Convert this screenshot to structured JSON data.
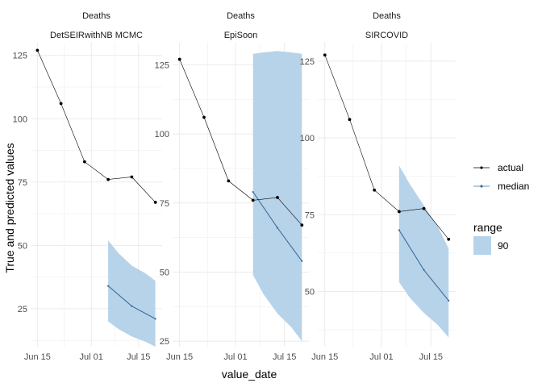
{
  "chart_data": {
    "type": "line",
    "xlabel": "value_date",
    "ylabel": "True and predicted values",
    "colors": {
      "actual": "#000000",
      "median": "#3d6e99",
      "ribbon": "#b7d3ea",
      "grid": "#ebebeb"
    },
    "legend": {
      "position": "right",
      "series_entries": [
        {
          "name": "actual",
          "color": "#000000"
        },
        {
          "name": "median",
          "color": "#3d6e99"
        }
      ],
      "range_title": "range",
      "range_entries": [
        {
          "label": "90",
          "color": "#b7d3ea"
        }
      ]
    },
    "panels": [
      {
        "strip_top": "Deaths",
        "strip_bottom": "DetSEIRwithNB MCMC",
        "ylim": [
          10,
          130
        ],
        "yticks": [
          25,
          50,
          75,
          100,
          125
        ],
        "ytick_labels": [
          "25",
          "50",
          "75",
          "100",
          "125"
        ],
        "xlim": [
          "2020-06-13",
          "2020-07-22"
        ],
        "xticks": [
          "2020-06-15",
          "2020-07-01",
          "2020-07-15"
        ],
        "xtick_labels": [
          "Jun 15",
          "Jul 01",
          "Jul 15"
        ],
        "actual": [
          {
            "x": "2020-06-15",
            "y": 127
          },
          {
            "x": "2020-06-22",
            "y": 106
          },
          {
            "x": "2020-06-29",
            "y": 83
          },
          {
            "x": "2020-07-06",
            "y": 76
          },
          {
            "x": "2020-07-13",
            "y": 77
          },
          {
            "x": "2020-07-20",
            "y": 67
          }
        ],
        "median": [
          {
            "x": "2020-07-06",
            "y": 34
          },
          {
            "x": "2020-07-13",
            "y": 26
          },
          {
            "x": "2020-07-20",
            "y": 21
          }
        ],
        "ribbon_90": [
          {
            "x": "2020-07-06",
            "lo": 20,
            "hi": 52
          },
          {
            "x": "2020-07-09",
            "lo": 17,
            "hi": 47
          },
          {
            "x": "2020-07-13",
            "lo": 14,
            "hi": 42
          },
          {
            "x": "2020-07-17",
            "lo": 12,
            "hi": 39
          },
          {
            "x": "2020-07-20",
            "lo": 10,
            "hi": 36
          }
        ]
      },
      {
        "strip_top": "Deaths",
        "strip_bottom": "EpiSoon",
        "ylim": [
          23,
          133
        ],
        "yticks": [
          25,
          50,
          75,
          100,
          125
        ],
        "ytick_labels": [
          "25",
          "50",
          "75",
          "100",
          "125"
        ],
        "xlim": [
          "2020-06-13",
          "2020-07-22"
        ],
        "xticks": [
          "2020-06-15",
          "2020-07-01",
          "2020-07-15"
        ],
        "xtick_labels": [
          "Jun 15",
          "Jul 01",
          "Jul 15"
        ],
        "actual": [
          {
            "x": "2020-06-15",
            "y": 127
          },
          {
            "x": "2020-06-22",
            "y": 106
          },
          {
            "x": "2020-06-29",
            "y": 83
          },
          {
            "x": "2020-07-06",
            "y": 76
          },
          {
            "x": "2020-07-13",
            "y": 77
          },
          {
            "x": "2020-07-20",
            "y": 67
          }
        ],
        "median": [
          {
            "x": "2020-07-06",
            "y": 79
          },
          {
            "x": "2020-07-13",
            "y": 66
          },
          {
            "x": "2020-07-20",
            "y": 54
          }
        ],
        "ribbon_90": [
          {
            "x": "2020-07-06",
            "lo": 49,
            "hi": 129
          },
          {
            "x": "2020-07-09",
            "lo": 42,
            "hi": 129.5
          },
          {
            "x": "2020-07-13",
            "lo": 35,
            "hi": 130
          },
          {
            "x": "2020-07-17",
            "lo": 30,
            "hi": 129.5
          },
          {
            "x": "2020-07-20",
            "lo": 25,
            "hi": 129
          }
        ]
      },
      {
        "strip_top": "Deaths",
        "strip_bottom": "SIRCOVID",
        "ylim": [
          32,
          131
        ],
        "yticks": [
          50,
          75,
          100,
          125
        ],
        "ytick_labels": [
          "50",
          "75",
          "100",
          "125"
        ],
        "xlim": [
          "2020-06-13",
          "2020-07-22"
        ],
        "xticks": [
          "2020-06-15",
          "2020-07-01",
          "2020-07-15"
        ],
        "xtick_labels": [
          "Jun 15",
          "Jul 01",
          "Jul 15"
        ],
        "actual": [
          {
            "x": "2020-06-15",
            "y": 127
          },
          {
            "x": "2020-06-22",
            "y": 106
          },
          {
            "x": "2020-06-29",
            "y": 83
          },
          {
            "x": "2020-07-06",
            "y": 76
          },
          {
            "x": "2020-07-13",
            "y": 77
          },
          {
            "x": "2020-07-20",
            "y": 67
          }
        ],
        "median": [
          {
            "x": "2020-07-06",
            "y": 70
          },
          {
            "x": "2020-07-13",
            "y": 57
          },
          {
            "x": "2020-07-20",
            "y": 47
          }
        ],
        "ribbon_90": [
          {
            "x": "2020-07-06",
            "lo": 53,
            "hi": 91
          },
          {
            "x": "2020-07-09",
            "lo": 48,
            "hi": 85
          },
          {
            "x": "2020-07-13",
            "lo": 43,
            "hi": 78
          },
          {
            "x": "2020-07-17",
            "lo": 39,
            "hi": 71
          },
          {
            "x": "2020-07-20",
            "lo": 35,
            "hi": 64
          }
        ]
      }
    ]
  }
}
